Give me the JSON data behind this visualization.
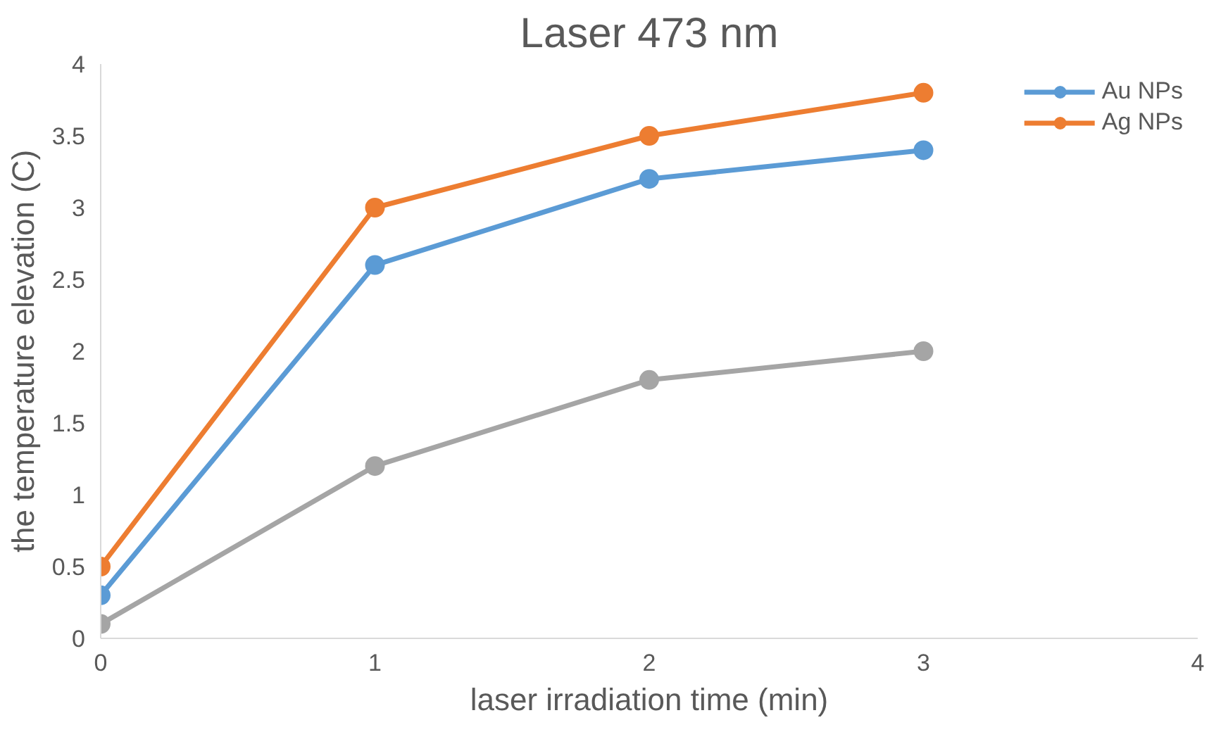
{
  "chart_data": {
    "type": "line",
    "title": "Laser 473 nm",
    "xlabel": "laser irradiation time (min)",
    "ylabel": "the temperature elevation (C)",
    "x": [
      0,
      1,
      2,
      3
    ],
    "series": [
      {
        "name": "Au NPs",
        "color": "#5b9bd5",
        "values": [
          0.3,
          2.6,
          3.2,
          3.4
        ]
      },
      {
        "name": "Ag NPs",
        "color": "#ed7d31",
        "values": [
          0.5,
          3.0,
          3.5,
          3.8
        ]
      },
      {
        "color": "#a5a5a5",
        "values": [
          0.1,
          1.2,
          1.8,
          2.0
        ]
      }
    ],
    "xlim": [
      0,
      4
    ],
    "xticks": [
      0,
      1,
      2,
      3,
      4
    ],
    "ylim": [
      0,
      4
    ],
    "yticks": [
      0,
      0.5,
      1,
      1.5,
      2,
      2.5,
      3,
      3.5,
      4
    ],
    "grid": false,
    "legend": "top right",
    "marker": "circle",
    "line_style": "solid"
  }
}
